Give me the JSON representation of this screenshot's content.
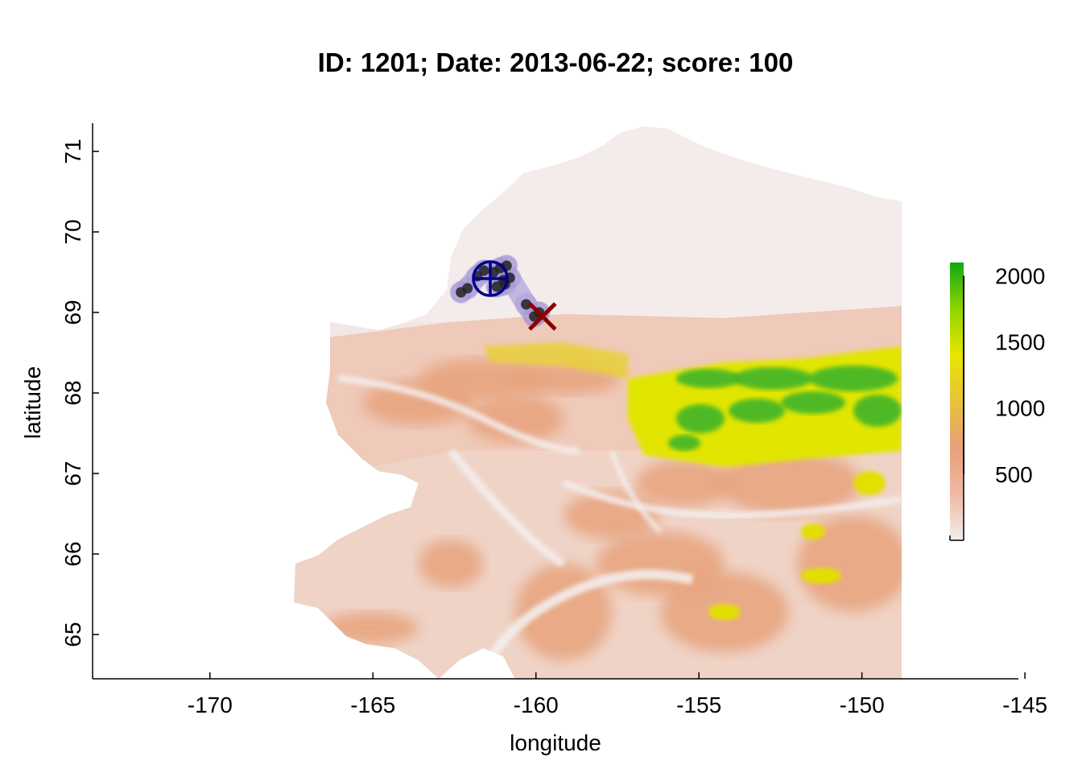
{
  "title": "ID: 1201;  Date: 2013-06-22;  score: 100",
  "chart_data": {
    "type": "map",
    "xlabel": "longitude",
    "ylabel": "latitude",
    "xlim": [
      -173.6,
      -145.2
    ],
    "ylim": [
      64.45,
      71.35
    ],
    "x_ticks": [
      -170,
      -165,
      -160,
      -155,
      -150,
      -145
    ],
    "y_ticks": [
      65,
      66,
      67,
      68,
      69,
      70,
      71
    ],
    "legend": {
      "title": "",
      "range": [
        0,
        2100
      ],
      "ticks": [
        500,
        1000,
        1500,
        2000
      ],
      "colors": [
        "#f2eeee",
        "#eeb9a2",
        "#e8a07a",
        "#e8c23a",
        "#e7e600",
        "#8fd400",
        "#11a811"
      ]
    },
    "points": [
      {
        "lon": -162.3,
        "lat": 69.25
      },
      {
        "lon": -162.1,
        "lat": 69.3
      },
      {
        "lon": -161.8,
        "lat": 69.45
      },
      {
        "lon": -161.6,
        "lat": 69.52
      },
      {
        "lon": -161.3,
        "lat": 69.5
      },
      {
        "lon": -161.1,
        "lat": 69.55
      },
      {
        "lon": -160.9,
        "lat": 69.58
      },
      {
        "lon": -161.0,
        "lat": 69.4
      },
      {
        "lon": -161.2,
        "lat": 69.32
      },
      {
        "lon": -160.95,
        "lat": 69.35
      },
      {
        "lon": -160.8,
        "lat": 69.43
      },
      {
        "lon": -160.3,
        "lat": 69.1
      },
      {
        "lon": -160.05,
        "lat": 68.95
      },
      {
        "lon": -159.9,
        "lat": 69.0
      }
    ],
    "centroid": {
      "lon": -161.4,
      "lat": 69.42
    },
    "cross_marker": {
      "lon": -159.8,
      "lat": 68.95
    },
    "colors": {
      "points": "#222222",
      "halo": "#9c8cd6",
      "centroid": "#00008b",
      "cross": "#8b0000"
    }
  }
}
